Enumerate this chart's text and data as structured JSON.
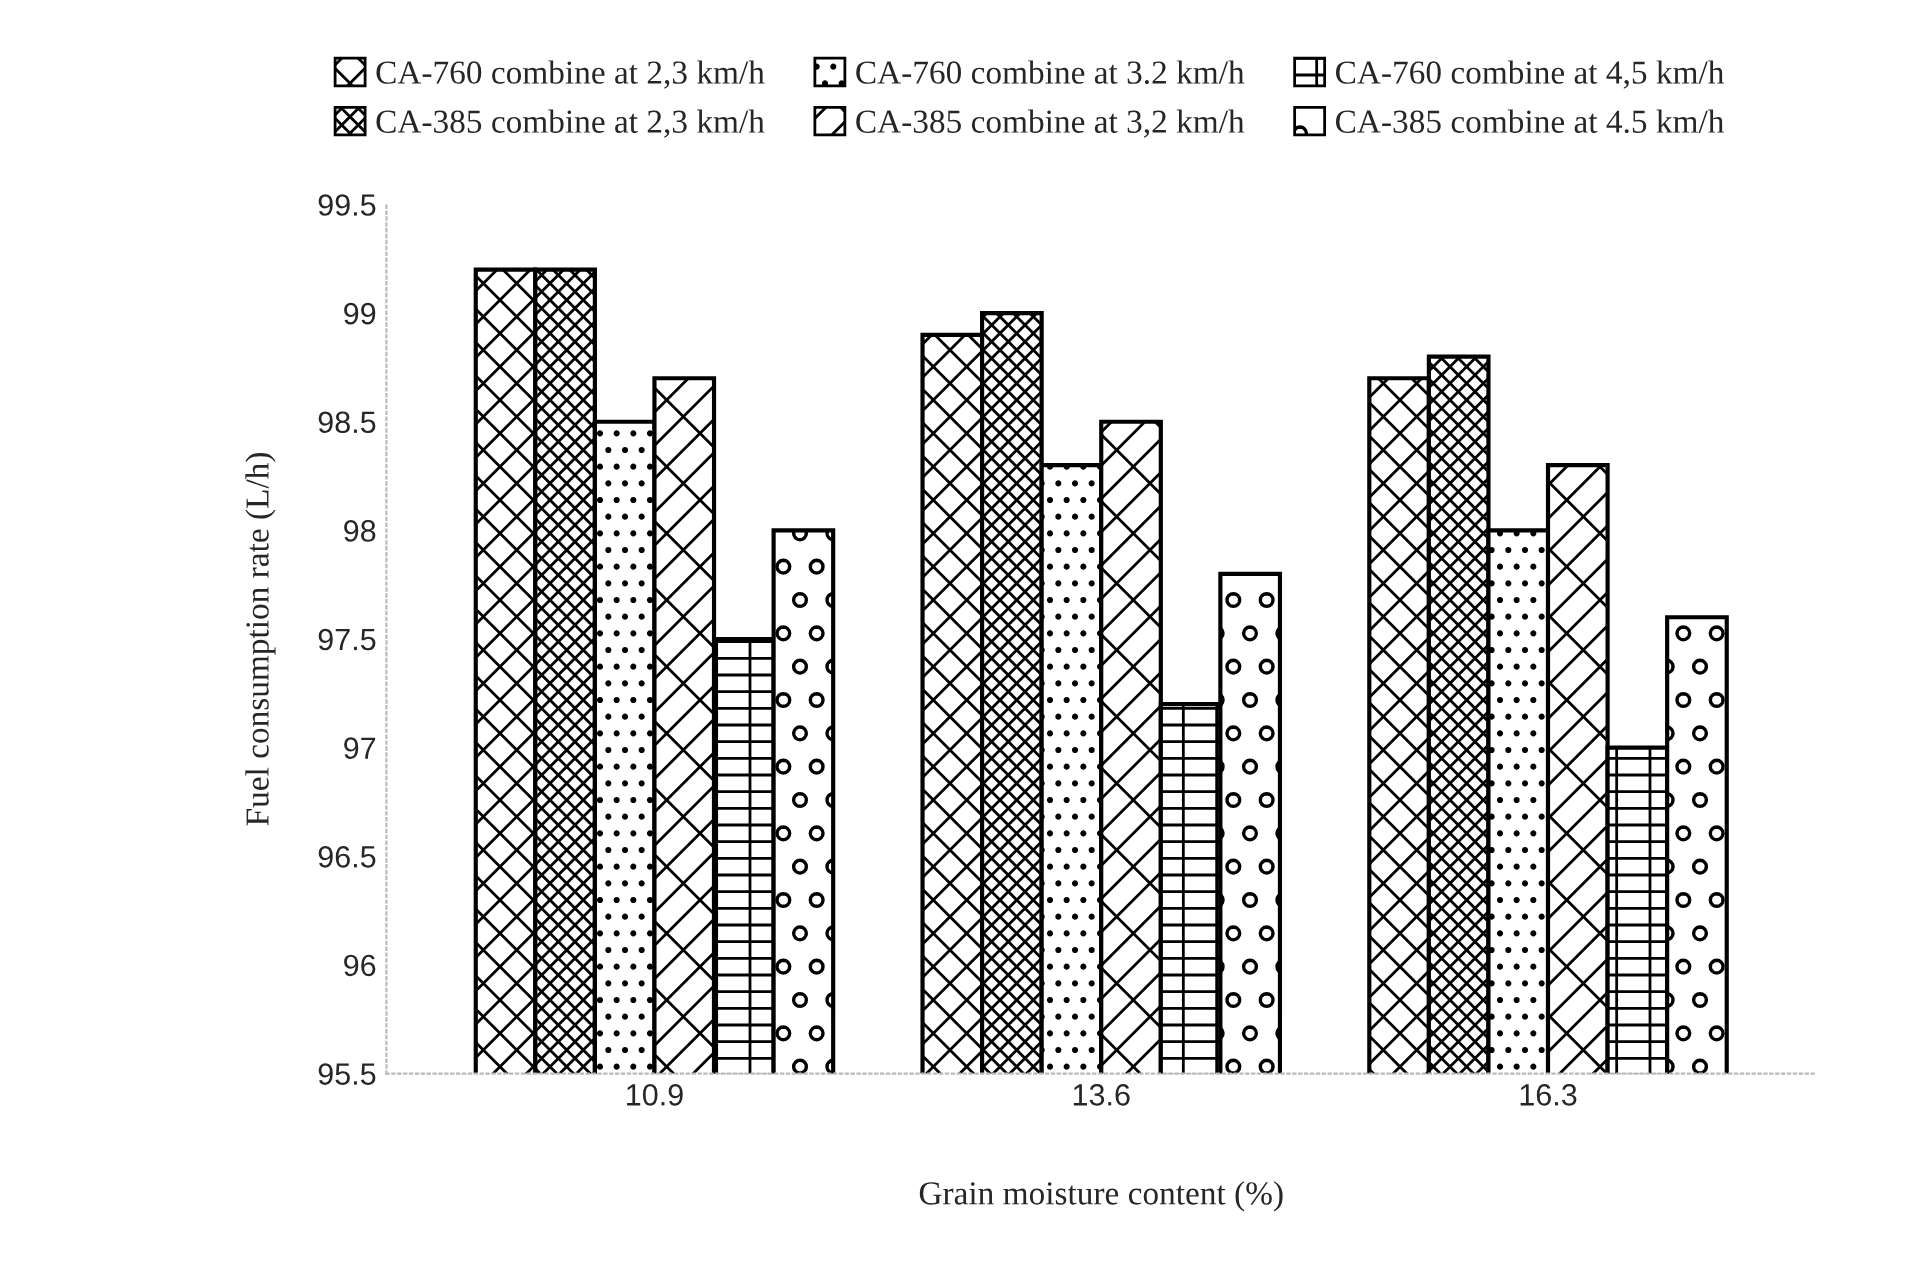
{
  "chart_data": {
    "type": "bar",
    "xlabel": "Grain moisture content (%)",
    "ylabel": "Fuel consumption rate (L/h)",
    "categories": [
      "10.9",
      "13.6",
      "16.3"
    ],
    "series": [
      {
        "name": "CA-760 combine at 2,3 km/h",
        "color": "#000000",
        "values": [
          99.2,
          98.9,
          98.7
        ]
      },
      {
        "name": "CA-385 combine at 2,3 km/h",
        "color": "#000000",
        "values": [
          99.2,
          99.0,
          98.8
        ]
      },
      {
        "name": "CA-760 combine at 3.2 km/h",
        "color": "#000000",
        "values": [
          98.5,
          98.3,
          98.0
        ]
      },
      {
        "name": "CA-385 combine at 3,2 km/h",
        "color": "#000000",
        "values": [
          98.7,
          98.5,
          98.3
        ]
      },
      {
        "name": "CA-760 combine at 4,5 km/h",
        "color": "#000000",
        "values": [
          97.5,
          97.2,
          97.0
        ]
      },
      {
        "name": "CA-385 combine at 4.5 km/h",
        "color": "#000000",
        "values": [
          98.0,
          97.8,
          97.6
        ]
      }
    ],
    "ylim": [
      95.5,
      99.5
    ],
    "yticks": [
      95.5,
      96,
      96.5,
      97,
      97.5,
      98,
      98.5,
      99,
      99.5
    ],
    "legend": "top",
    "grid": false
  }
}
